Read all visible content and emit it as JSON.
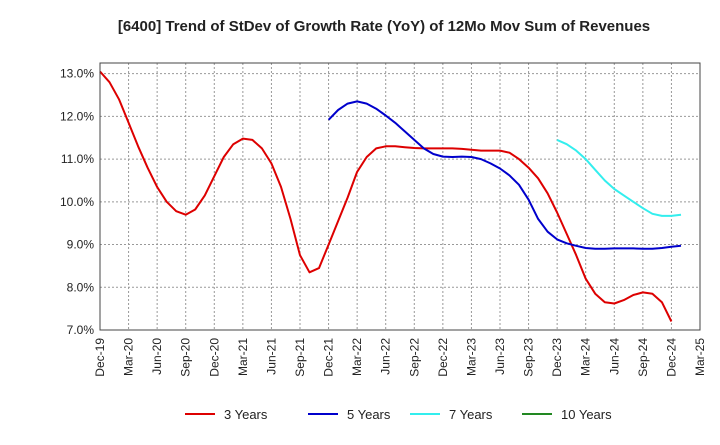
{
  "chart_data": {
    "type": "line",
    "title": "[6400]  Trend of StDev of Growth Rate (YoY) of 12Mo Mov Sum of Revenues",
    "xlabel": "",
    "ylabel": "",
    "ylim": [
      7.0,
      13.25
    ],
    "y_ticks": [
      7.0,
      8.0,
      9.0,
      10.0,
      11.0,
      12.0,
      13.0
    ],
    "y_tick_labels": [
      "7.0%",
      "8.0%",
      "9.0%",
      "10.0%",
      "11.0%",
      "12.0%",
      "13.0%"
    ],
    "x_tick_labels": [
      "Dec-19",
      "Mar-20",
      "Jun-20",
      "Sep-20",
      "Dec-20",
      "Mar-21",
      "Jun-21",
      "Sep-21",
      "Dec-21",
      "Mar-22",
      "Jun-22",
      "Sep-22",
      "Dec-22",
      "Mar-23",
      "Jun-23",
      "Sep-23",
      "Dec-23",
      "Mar-24",
      "Jun-24",
      "Sep-24",
      "Dec-24",
      "Mar-25"
    ],
    "x_range_months": [
      0,
      63
    ],
    "grid": true,
    "legend_position": "bottom",
    "series": [
      {
        "name": "3 Years",
        "color": "#dd0000",
        "start_month": 0,
        "values": [
          13.05,
          12.8,
          12.4,
          11.85,
          11.3,
          10.8,
          10.35,
          10.0,
          9.78,
          9.7,
          9.82,
          10.15,
          10.6,
          11.05,
          11.35,
          11.48,
          11.45,
          11.25,
          10.9,
          10.35,
          9.6,
          8.75,
          8.35,
          8.45,
          9.0,
          9.55,
          10.1,
          10.7,
          11.05,
          11.25,
          11.3,
          11.3,
          11.28,
          11.26,
          11.25,
          11.25,
          11.25,
          11.25,
          11.24,
          11.22,
          11.2,
          11.2,
          11.2,
          11.15,
          11.0,
          10.8,
          10.55,
          10.2,
          9.75,
          9.25,
          8.75,
          8.2,
          7.85,
          7.65,
          7.62,
          7.7,
          7.82,
          7.88,
          7.85,
          7.65,
          7.2
        ]
      },
      {
        "name": "5 Years",
        "color": "#0000cc",
        "start_month": 24,
        "values": [
          11.92,
          12.15,
          12.3,
          12.35,
          12.3,
          12.18,
          12.02,
          11.85,
          11.65,
          11.45,
          11.25,
          11.12,
          11.06,
          11.05,
          11.06,
          11.05,
          11.0,
          10.9,
          10.78,
          10.62,
          10.4,
          10.05,
          9.6,
          9.3,
          9.12,
          9.03,
          8.97,
          8.92,
          8.9,
          8.9,
          8.91,
          8.91,
          8.91,
          8.9,
          8.9,
          8.92,
          8.95,
          8.97
        ]
      },
      {
        "name": "7 Years",
        "color": "#33eeee",
        "start_month": 48,
        "values": [
          11.45,
          11.35,
          11.2,
          11.0,
          10.75,
          10.5,
          10.3,
          10.15,
          10.0,
          9.85,
          9.72,
          9.67,
          9.67,
          9.7
        ]
      },
      {
        "name": "10 Years",
        "color": "#228822",
        "start_month": 0,
        "values": []
      }
    ]
  }
}
